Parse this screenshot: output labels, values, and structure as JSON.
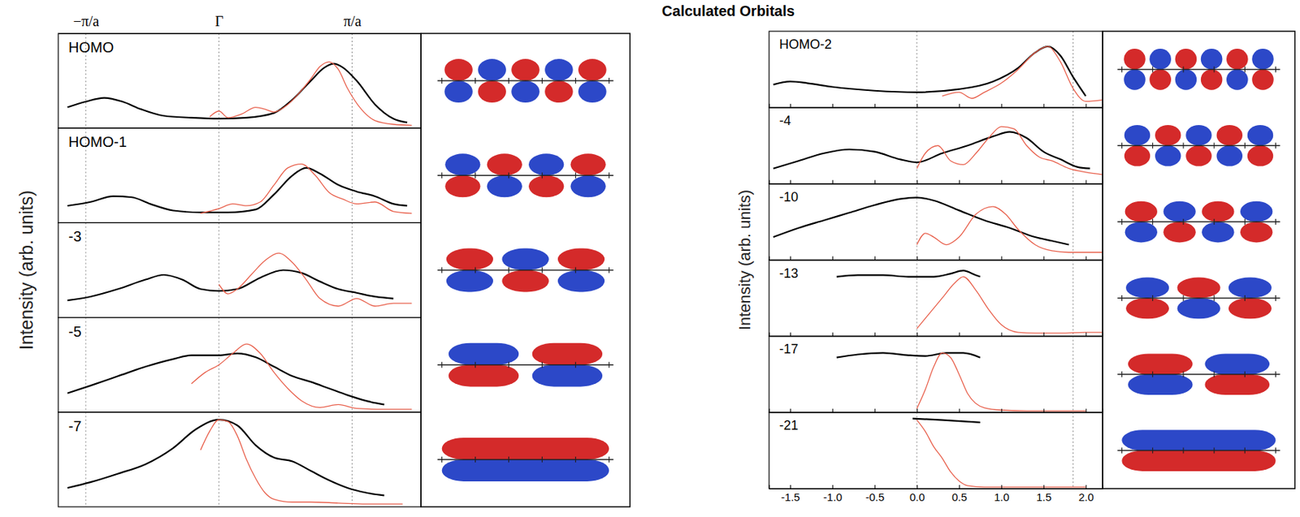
{
  "title": "Calculated Orbitals",
  "chart_data": [
    {
      "type": "line",
      "ylabel": "Intensity (arb. units)",
      "xlim": [
        -1.75,
        2.2
      ],
      "xticks": [
        {
          "value": -1.45,
          "label": "−π/a"
        },
        {
          "value": 0,
          "label": "Γ"
        },
        {
          "value": 1.45,
          "label": "π/a"
        }
      ],
      "tick_labels": "x",
      "grid": true,
      "panels": [
        {
          "label": "HOMO",
          "ylim": [
            0,
            1
          ],
          "series": [
            {
              "color": "#000000",
              "x": [
                -1.65,
                -1.45,
                -1.25,
                -1.05,
                -0.85,
                -0.6,
                -0.3,
                0,
                0.3,
                0.6,
                0.8,
                1.0,
                1.15,
                1.25,
                1.35,
                1.5,
                1.7,
                1.9,
                2.05
              ],
              "values": [
                0.22,
                0.28,
                0.32,
                0.28,
                0.2,
                0.13,
                0.11,
                0.1,
                0.11,
                0.16,
                0.3,
                0.5,
                0.64,
                0.68,
                0.64,
                0.5,
                0.25,
                0.1,
                0.06
              ]
            },
            {
              "color": "#e8604c",
              "x": [
                -0.1,
                0.0,
                0.1,
                0.25,
                0.4,
                0.5,
                0.6,
                0.75,
                0.9,
                1.0,
                1.1,
                1.2,
                1.3,
                1.4,
                1.55,
                1.7,
                1.9,
                2.1
              ],
              "values": [
                0.12,
                0.18,
                0.11,
                0.15,
                0.22,
                0.2,
                0.17,
                0.25,
                0.4,
                0.52,
                0.65,
                0.7,
                0.62,
                0.42,
                0.2,
                0.08,
                0.04,
                0.03
              ]
            }
          ]
        },
        {
          "label": "HOMO-1",
          "ylim": [
            0,
            1
          ],
          "series": [
            {
              "color": "#000000",
              "x": [
                -1.65,
                -1.4,
                -1.15,
                -0.95,
                -0.75,
                -0.5,
                -0.2,
                0.1,
                0.4,
                0.6,
                0.8,
                0.95,
                1.1,
                1.3,
                1.5,
                1.7,
                1.9,
                2.05
              ],
              "values": [
                0.18,
                0.22,
                0.28,
                0.27,
                0.2,
                0.13,
                0.11,
                0.11,
                0.14,
                0.3,
                0.5,
                0.58,
                0.52,
                0.4,
                0.33,
                0.28,
                0.2,
                0.18
              ]
            },
            {
              "color": "#e8604c",
              "x": [
                -0.2,
                0.0,
                0.15,
                0.3,
                0.45,
                0.6,
                0.75,
                0.9,
                1.05,
                1.2,
                1.35,
                1.5,
                1.7,
                1.9,
                2.1
              ],
              "values": [
                0.1,
                0.15,
                0.2,
                0.18,
                0.22,
                0.4,
                0.58,
                0.62,
                0.5,
                0.32,
                0.25,
                0.2,
                0.22,
                0.12,
                0.1
              ]
            }
          ]
        },
        {
          "label": "-3",
          "ylim": [
            0,
            1
          ],
          "series": [
            {
              "color": "#000000",
              "x": [
                -1.65,
                -1.4,
                -1.1,
                -0.8,
                -0.6,
                -0.4,
                -0.2,
                0,
                0.2,
                0.45,
                0.7,
                0.9,
                1.1,
                1.3,
                1.5,
                1.7,
                1.9
              ],
              "values": [
                0.18,
                0.22,
                0.3,
                0.4,
                0.45,
                0.4,
                0.3,
                0.28,
                0.3,
                0.42,
                0.5,
                0.47,
                0.38,
                0.3,
                0.26,
                0.22,
                0.2
              ]
            },
            {
              "color": "#e8604c",
              "x": [
                0,
                0.1,
                0.2,
                0.35,
                0.5,
                0.65,
                0.8,
                0.95,
                1.1,
                1.3,
                1.5,
                1.7,
                1.9,
                2.1
              ],
              "values": [
                0.35,
                0.25,
                0.3,
                0.45,
                0.6,
                0.68,
                0.58,
                0.4,
                0.2,
                0.12,
                0.2,
                0.12,
                0.15,
                0.15
              ]
            }
          ]
        },
        {
          "label": "-5",
          "ylim": [
            0,
            1
          ],
          "series": [
            {
              "color": "#000000",
              "x": [
                -1.65,
                -1.4,
                -1.1,
                -0.8,
                -0.5,
                -0.3,
                0,
                0.2,
                0.4,
                0.6,
                0.8,
                1.0,
                1.2,
                1.4,
                1.6,
                1.8
              ],
              "values": [
                0.2,
                0.28,
                0.38,
                0.48,
                0.56,
                0.6,
                0.6,
                0.62,
                0.58,
                0.48,
                0.38,
                0.32,
                0.25,
                0.18,
                0.12,
                0.08
              ]
            },
            {
              "color": "#e8604c",
              "x": [
                -0.3,
                -0.15,
                0,
                0.15,
                0.3,
                0.45,
                0.6,
                0.75,
                0.9,
                1.1,
                1.3,
                1.5,
                1.8,
                2.1
              ],
              "values": [
                0.3,
                0.42,
                0.5,
                0.62,
                0.72,
                0.62,
                0.42,
                0.25,
                0.12,
                0.05,
                0.08,
                0.04,
                0.03,
                0.03
              ]
            }
          ]
        },
        {
          "label": "-7",
          "ylim": [
            0,
            1
          ],
          "series": [
            {
              "color": "#000000",
              "x": [
                -1.65,
                -1.4,
                -1.1,
                -0.8,
                -0.5,
                -0.25,
                0,
                0.2,
                0.4,
                0.6,
                0.8,
                1.0,
                1.2,
                1.4,
                1.6,
                1.8
              ],
              "values": [
                0.2,
                0.26,
                0.35,
                0.45,
                0.62,
                0.82,
                0.92,
                0.86,
                0.65,
                0.52,
                0.48,
                0.38,
                0.28,
                0.2,
                0.15,
                0.12
              ]
            },
            {
              "color": "#e8604c",
              "x": [
                -0.2,
                -0.1,
                0,
                0.1,
                0.2,
                0.3,
                0.4,
                0.5,
                0.6,
                0.8,
                1.0,
                1.3,
                1.6,
                2.0
              ],
              "values": [
                0.6,
                0.8,
                0.92,
                0.9,
                0.75,
                0.5,
                0.3,
                0.15,
                0.08,
                0.05,
                0.05,
                0.04,
                0.03,
                0.03
              ]
            }
          ]
        }
      ]
    },
    {
      "type": "line",
      "ylabel": "Intensity (arb. units)",
      "xlim": [
        -1.75,
        2.2
      ],
      "xticks": [
        {
          "value": -1.5,
          "label": "-1.5"
        },
        {
          "value": -1.0,
          "label": "-1.0"
        },
        {
          "value": -0.5,
          "label": "-0.5"
        },
        {
          "value": 0,
          "label": "0.0"
        },
        {
          "value": 0.5,
          "label": "0.5"
        },
        {
          "value": 1.0,
          "label": "1.0"
        },
        {
          "value": 1.5,
          "label": "1.5"
        },
        {
          "value": 2.0,
          "label": "2.0"
        }
      ],
      "vlines": [
        0,
        1.85
      ],
      "tick_labels": "x",
      "grid": true,
      "panels": [
        {
          "label": "HOMO-2",
          "ylim": [
            0,
            1
          ],
          "series": [
            {
              "color": "#000000",
              "x": [
                -1.7,
                -1.5,
                -1.3,
                -1.0,
                -0.5,
                0,
                0.5,
                0.9,
                1.2,
                1.4,
                1.55,
                1.7,
                1.85,
                2.0
              ],
              "values": [
                0.3,
                0.34,
                0.32,
                0.27,
                0.22,
                0.2,
                0.24,
                0.34,
                0.52,
                0.72,
                0.8,
                0.68,
                0.4,
                0.15
              ]
            },
            {
              "color": "#e8604c",
              "x": [
                0.3,
                0.5,
                0.65,
                0.8,
                1.0,
                1.2,
                1.4,
                1.55,
                1.7,
                1.85,
                2.0,
                2.2
              ],
              "values": [
                0.15,
                0.2,
                0.12,
                0.2,
                0.32,
                0.5,
                0.72,
                0.8,
                0.6,
                0.25,
                0.08,
                0.1
              ]
            }
          ]
        },
        {
          "label": "-4",
          "ylim": [
            0,
            1
          ],
          "series": [
            {
              "color": "#000000",
              "x": [
                -1.7,
                -1.4,
                -1.1,
                -0.8,
                -0.5,
                -0.2,
                0,
                0.3,
                0.6,
                0.9,
                1.1,
                1.3,
                1.5,
                1.7,
                1.9,
                2.05
              ],
              "values": [
                0.2,
                0.3,
                0.4,
                0.45,
                0.42,
                0.32,
                0.28,
                0.4,
                0.5,
                0.62,
                0.68,
                0.6,
                0.42,
                0.32,
                0.22,
                0.2
              ]
            },
            {
              "color": "#e8604c",
              "x": [
                0,
                0.1,
                0.25,
                0.4,
                0.55,
                0.7,
                0.85,
                1.0,
                1.15,
                1.3,
                1.45,
                1.6,
                1.8,
                2.0,
                2.2
              ],
              "values": [
                0.2,
                0.4,
                0.5,
                0.3,
                0.25,
                0.4,
                0.6,
                0.75,
                0.72,
                0.5,
                0.35,
                0.3,
                0.2,
                0.15,
                0.12
              ]
            }
          ]
        },
        {
          "label": "-10",
          "ylim": [
            0,
            1
          ],
          "series": [
            {
              "color": "#000000",
              "x": [
                -1.7,
                -1.4,
                -1.1,
                -0.8,
                -0.5,
                -0.2,
                0,
                0.2,
                0.5,
                0.8,
                1.1,
                1.4,
                1.6,
                1.8
              ],
              "values": [
                0.3,
                0.42,
                0.52,
                0.62,
                0.72,
                0.8,
                0.82,
                0.78,
                0.65,
                0.52,
                0.42,
                0.3,
                0.25,
                0.2
              ]
            },
            {
              "color": "#e8604c",
              "x": [
                0,
                0.1,
                0.2,
                0.35,
                0.5,
                0.7,
                0.9,
                1.05,
                1.2,
                1.4,
                1.6,
                1.8,
                2.0,
                2.2
              ],
              "values": [
                0.2,
                0.35,
                0.3,
                0.2,
                0.3,
                0.6,
                0.7,
                0.6,
                0.4,
                0.2,
                0.12,
                0.1,
                0.1,
                0.1
              ]
            }
          ]
        },
        {
          "label": "-13",
          "ylim": [
            0,
            1
          ],
          "series": [
            {
              "color": "#000000",
              "x": [
                -0.95,
                -0.7,
                -0.4,
                -0.1,
                0.2,
                0.4,
                0.55,
                0.7,
                0.75
              ],
              "values": [
                0.78,
                0.8,
                0.8,
                0.78,
                0.78,
                0.82,
                0.86,
                0.8,
                0.78
              ]
            },
            {
              "color": "#e8604c",
              "x": [
                0,
                0.15,
                0.3,
                0.45,
                0.55,
                0.7,
                0.85,
                1.0,
                1.2,
                1.4,
                1.7,
                2.0,
                2.2
              ],
              "values": [
                0.1,
                0.3,
                0.5,
                0.7,
                0.78,
                0.6,
                0.35,
                0.15,
                0.05,
                0.04,
                0.04,
                0.05,
                0.05
              ]
            }
          ]
        },
        {
          "label": "-17",
          "ylim": [
            0,
            1
          ],
          "series": [
            {
              "color": "#000000",
              "x": [
                -0.95,
                -0.7,
                -0.4,
                -0.1,
                0.1,
                0.35,
                0.55,
                0.75
              ],
              "values": [
                0.72,
                0.76,
                0.78,
                0.75,
                0.74,
                0.78,
                0.78,
                0.72
              ]
            },
            {
              "color": "#e8604c",
              "x": [
                0,
                0.1,
                0.2,
                0.3,
                0.4,
                0.5,
                0.6,
                0.8,
                1.0,
                1.3,
                1.6,
                2.0
              ],
              "values": [
                0.05,
                0.3,
                0.6,
                0.78,
                0.72,
                0.5,
                0.25,
                0.06,
                0.03,
                0.02,
                0.02,
                0.02
              ]
            }
          ]
        },
        {
          "label": "-21",
          "ylim": [
            0,
            1
          ],
          "series": [
            {
              "color": "#000000",
              "x": [
                -0.05,
                0.3,
                0.75
              ],
              "values": [
                0.92,
                0.9,
                0.87
              ]
            },
            {
              "color": "#e8604c",
              "x": [
                0,
                0.1,
                0.2,
                0.3,
                0.4,
                0.5,
                0.6,
                0.8,
                1.0,
                1.5,
                2.0
              ],
              "values": [
                0.9,
                0.75,
                0.55,
                0.4,
                0.22,
                0.1,
                0.04,
                0.02,
                0.02,
                0.02,
                0.02
              ]
            }
          ]
        }
      ]
    }
  ]
}
